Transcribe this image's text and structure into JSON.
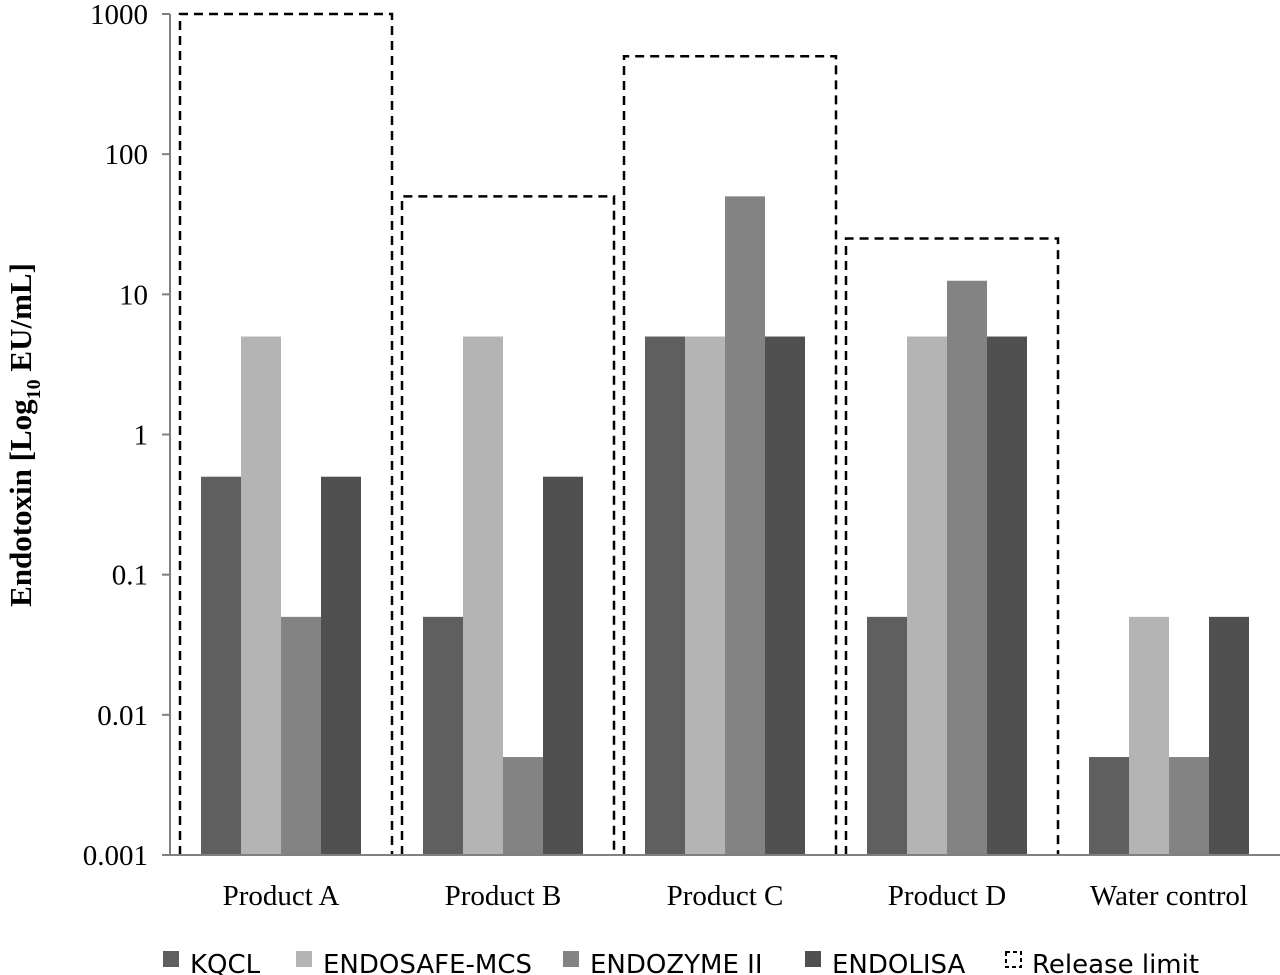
{
  "chart_data": {
    "type": "bar",
    "y_scale": "log",
    "ylim": [
      0.001,
      1000
    ],
    "y_ticks": [
      "0.001",
      "0.01",
      "0.1",
      "1",
      "10",
      "100",
      "1000"
    ],
    "ylabel": {
      "main": "Endotoxin [Log",
      "sub": "10",
      "unit": " EU/mL]"
    },
    "categories": [
      "Product A",
      "Product B",
      "Product C",
      "Product D",
      "Water control"
    ],
    "series": [
      {
        "name": "KQCL",
        "color": "#5f5f5f",
        "values": [
          0.5,
          0.05,
          5,
          0.05,
          0.005
        ]
      },
      {
        "name": "ENDOSAFE-MCS",
        "color": "#b4b4b4",
        "values": [
          5,
          5,
          5,
          5,
          0.05
        ]
      },
      {
        "name": "ENDOZYME II",
        "color": "#838383",
        "values": [
          0.05,
          0.005,
          50,
          12.5,
          0.005
        ]
      },
      {
        "name": "ENDOLISA",
        "color": "#505050",
        "values": [
          0.5,
          0.5,
          5,
          5,
          0.05
        ]
      }
    ],
    "release_limit": {
      "name": "Release limit",
      "values": [
        1000,
        50,
        500,
        25,
        null
      ]
    },
    "legend_position": "bottom",
    "grid": false
  }
}
